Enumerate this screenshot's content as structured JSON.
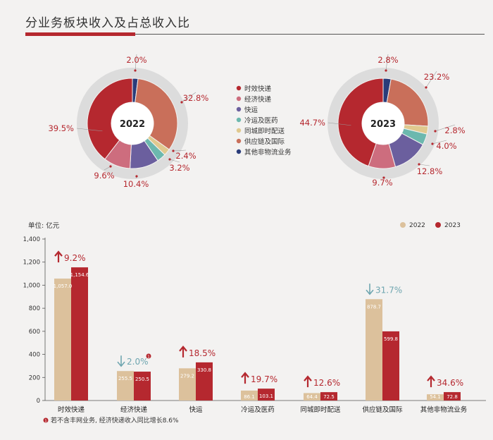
{
  "title": "分业务板块收入及占总收入比",
  "colors": {
    "accent": "#b5282f",
    "bar2022": "#dcc19c",
    "bar2023": "#b5282f",
    "up": "#b5282f",
    "down": "#6fa6b0"
  },
  "chart_data": [
    {
      "type": "pie",
      "title": "2022",
      "center_label": "2022",
      "categories": [
        "时效快递",
        "经济快递",
        "快运",
        "冷运及医药",
        "同城即时配送",
        "供应链及国际",
        "其他非物流业务"
      ],
      "values": [
        39.5,
        9.6,
        10.4,
        3.2,
        2.4,
        32.8,
        2.0
      ],
      "labels": [
        "39.5%",
        "9.6%",
        "10.4%",
        "3.2%",
        "2.4%",
        "32.8%",
        "2.0%"
      ],
      "colors": [
        "#b5282f",
        "#cd6d7e",
        "#6b5f9e",
        "#6cb8ae",
        "#e0c98f",
        "#c96f5a",
        "#2a3c7a"
      ]
    },
    {
      "type": "pie",
      "title": "2023",
      "center_label": "2023",
      "categories": [
        "时效快递",
        "经济快递",
        "快运",
        "冷运及医药",
        "同城即时配送",
        "供应链及国际",
        "其他非物流业务"
      ],
      "values": [
        44.7,
        9.7,
        12.8,
        4.0,
        2.8,
        23.2,
        2.8
      ],
      "labels": [
        "44.7%",
        "9.7%",
        "12.8%",
        "4.0%",
        "2.8%",
        "23.2%",
        "2.8%"
      ],
      "colors": [
        "#b5282f",
        "#cd6d7e",
        "#6b5f9e",
        "#6cb8ae",
        "#e0c98f",
        "#c96f5a",
        "#2a3c7a"
      ]
    },
    {
      "type": "bar",
      "unit_label": "单位: 亿元",
      "categories": [
        "时效快递",
        "经济快递",
        "快运",
        "冷运及医药",
        "同城即时配送",
        "供应链及国际",
        "其他非物流业务"
      ],
      "series": [
        {
          "name": "2022",
          "values": [
            1057.0,
            255.5,
            279.2,
            86.1,
            64.4,
            878.7,
            54.1
          ]
        },
        {
          "name": "2023",
          "values": [
            1154.6,
            250.5,
            330.8,
            103.1,
            72.5,
            599.8,
            72.8
          ]
        }
      ],
      "value_labels_2022": [
        "1,057.0",
        "255.5",
        "279.2",
        "86.1",
        "64.4",
        "878.7",
        "54.1"
      ],
      "value_labels_2023": [
        "1,154.6",
        "250.5",
        "330.8",
        "103.1",
        "72.5",
        "599.8",
        "72.8"
      ],
      "growth": [
        {
          "text": "9.2%",
          "dir": "up"
        },
        {
          "text": "2.0%",
          "dir": "down"
        },
        {
          "text": "18.5%",
          "dir": "up"
        },
        {
          "text": "19.7%",
          "dir": "up"
        },
        {
          "text": "12.6%",
          "dir": "up"
        },
        {
          "text": "31.7%",
          "dir": "down"
        },
        {
          "text": "34.6%",
          "dir": "up"
        }
      ],
      "ylim": [
        0,
        1400
      ],
      "yticks": [
        "0",
        "200",
        "400",
        "600",
        "800",
        "1,000",
        "1,200",
        "1,400"
      ],
      "ytick_values": [
        0,
        200,
        400,
        600,
        800,
        1000,
        1200,
        1400
      ],
      "legend": [
        "2022",
        "2023"
      ],
      "legend_position": "top-right",
      "footnote_marker": "1",
      "footnote": "若不含丰网业务, 经济快递收入同比增长8.6%"
    }
  ]
}
